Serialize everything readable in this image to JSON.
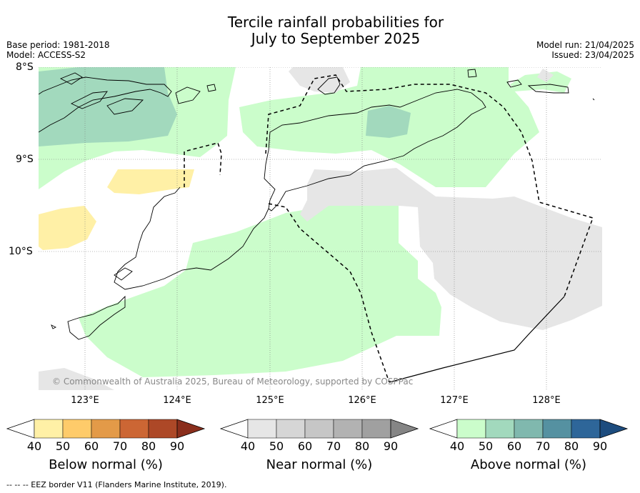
{
  "header": {
    "title": "Tercile rainfall probabilities for\nJuly to September 2025",
    "base_period": "Base period: 1981-2018",
    "model": "Model: ACCESS-S2",
    "model_run": "Model run: 21/04/2025",
    "issued": "Issued: 23/04/2025"
  },
  "map": {
    "lat_labels": [
      "8°S",
      "9°S",
      "10°S"
    ],
    "lon_labels": [
      "123°E",
      "124°E",
      "125°E",
      "126°E",
      "127°E",
      "128°E"
    ],
    "copyright": "© Commonwealth of Australia 2025, Bureau of Meteorology, supported by COSPPac"
  },
  "colorbars": [
    {
      "title": "Below normal (%)",
      "ticks": [
        "40",
        "50",
        "60",
        "70",
        "80",
        "90"
      ],
      "colors": [
        "#fff0a6",
        "#fecb6a",
        "#e39a48",
        "#cc6634",
        "#ad4827"
      ],
      "over": "#8a2e1c"
    },
    {
      "title": "Near normal (%)",
      "ticks": [
        "40",
        "50",
        "60",
        "70",
        "80",
        "90"
      ],
      "colors": [
        "#e6e6e6",
        "#d6d6d6",
        "#c6c6c6",
        "#b2b2b2",
        "#a0a0a0"
      ],
      "over": "#858585"
    },
    {
      "title": "Above normal (%)",
      "ticks": [
        "40",
        "50",
        "60",
        "70",
        "80",
        "90"
      ],
      "colors": [
        "#cbfdcb",
        "#a2d9bd",
        "#80b8ae",
        "#5591a1",
        "#2e6699"
      ],
      "over": "#1d4c7e"
    }
  ],
  "footnote": "--  --  -- EEZ border V11 (Flanders Marine Institute, 2019)."
}
